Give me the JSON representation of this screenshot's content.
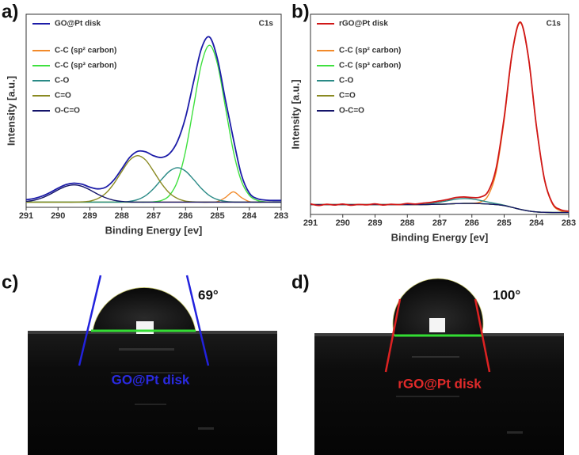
{
  "chart_data": [
    {
      "type": "line",
      "panel_label": "a)",
      "annotation": "C1s",
      "x_label": "Binding Energy [ev]",
      "y_label": "Intensity [a.u.]",
      "legend": "upper left",
      "x": [
        291,
        290.75,
        290.5,
        290.25,
        290,
        289.75,
        289.5,
        289.25,
        289,
        288.75,
        288.5,
        288.25,
        288,
        287.75,
        287.5,
        287.25,
        287,
        286.75,
        286.5,
        286.25,
        286,
        285.75,
        285.5,
        285.25,
        285,
        284.75,
        284.5,
        284.25,
        284,
        283.75,
        283.5,
        283.25,
        283
      ],
      "xlim": [
        291,
        283
      ],
      "xticks": [
        291,
        290,
        289,
        288,
        287,
        286,
        285,
        284,
        283
      ],
      "ylim": [
        0,
        112
      ],
      "series": [
        {
          "name": "GO@Pt disk",
          "color": "#1c1ca8",
          "values": [
            4.4,
            5.1,
            6.5,
            8.6,
            11.1,
            13.2,
            14.0,
            13.4,
            11.7,
            10.7,
            11.7,
            15.8,
            22.3,
            29.0,
            32.5,
            32.2,
            29.9,
            28.9,
            31.2,
            38.4,
            52.2,
            72.6,
            92.2,
            98.8,
            86.1,
            62.4,
            39.7,
            19.0,
            8.3,
            5.0,
            4.2,
            4.0,
            4.0
          ]
        },
        {
          "name": "C-C (sp² carbon)",
          "color": "#f28a2a",
          "values": [
            3,
            3,
            3,
            3,
            3,
            3,
            3,
            3,
            3,
            3,
            3,
            3,
            3,
            3,
            3,
            3,
            3,
            3,
            3,
            3,
            3,
            3,
            3,
            3,
            3.3,
            5.7,
            9,
            5.7,
            3.3,
            3,
            3,
            3,
            3
          ]
        },
        {
          "name": "C-C (sp³ carbon)",
          "color": "#3fe03f",
          "values": [
            3,
            3,
            3,
            3,
            3,
            3,
            3,
            3,
            3,
            3,
            3,
            3,
            3,
            3,
            3,
            3,
            3.2,
            4.0,
            7.0,
            15.3,
            32.6,
            58.2,
            83.3,
            94,
            83.3,
            58.2,
            32.6,
            15.3,
            7.0,
            4.0,
            3.2,
            3,
            3
          ]
        },
        {
          "name": "C-O",
          "color": "#2a8a86",
          "values": [
            3,
            3,
            3,
            3,
            3,
            3,
            3,
            3,
            3,
            3,
            3,
            3,
            3.1,
            3.5,
            4.5,
            6.8,
            10.9,
            16.2,
            21,
            23,
            21,
            16.2,
            10.9,
            6.8,
            4.5,
            3.5,
            3.1,
            3,
            3,
            3,
            3,
            3,
            3
          ]
        },
        {
          "name": "C=O",
          "color": "#8a8a22",
          "values": [
            3,
            3,
            3,
            3,
            3,
            3,
            3,
            3.2,
            3.6,
            5.1,
            8.2,
            13.7,
            20.8,
            27.4,
            30,
            27.4,
            20.8,
            13.7,
            8.2,
            5.1,
            3.6,
            3.2,
            3,
            3,
            3,
            3,
            3,
            3,
            3,
            3,
            3,
            3,
            3
          ]
        },
        {
          "name": "O-C=O",
          "color": "#14146a",
          "values": [
            3.4,
            4.1,
            5.5,
            7.6,
            10.1,
            12.2,
            13,
            12.2,
            10.1,
            7.6,
            5.5,
            4.1,
            3.4,
            3.1,
            3,
            3,
            3,
            3,
            3,
            3,
            3,
            3,
            3,
            3,
            3,
            3,
            3,
            3,
            3,
            3,
            3,
            3,
            3
          ]
        }
      ]
    },
    {
      "type": "line",
      "panel_label": "b)",
      "annotation": "C1s",
      "x_label": "Binding Energy [ev]",
      "y_label": "Intensity [a.u.]",
      "legend": "upper left",
      "x": [
        291,
        290.75,
        290.5,
        290.25,
        290,
        289.75,
        289.5,
        289.25,
        289,
        288.75,
        288.5,
        288.25,
        288,
        287.75,
        287.5,
        287.25,
        287,
        286.75,
        286.5,
        286.25,
        286,
        285.75,
        285.5,
        285.25,
        285,
        284.75,
        284.5,
        284.25,
        284,
        283.75,
        283.5,
        283.25,
        283
      ],
      "xlim": [
        291,
        283
      ],
      "xticks": [
        291,
        290,
        289,
        288,
        287,
        286,
        285,
        284,
        283
      ],
      "ylim": [
        0,
        102
      ],
      "series": [
        {
          "name": "rGO@Pt disk",
          "color": "#d01818",
          "values": [
            5.4,
            4.6,
            5.2,
            4.8,
            5.3,
            4.7,
            5.1,
            4.9,
            5.4,
            4.8,
            5.2,
            5.0,
            5.6,
            5.3,
            5.8,
            6.2,
            6.9,
            7.6,
            8.6,
            8.9,
            8.6,
            8.8,
            11.6,
            23.4,
            49.3,
            82.5,
            98.0,
            80.4,
            45.0,
            17.8,
            5.6,
            2.4,
            1.6
          ]
        },
        {
          "name": "C-C (sp² carbon)",
          "color": "#f28a2a",
          "values": [
            5,
            5,
            5,
            5,
            5,
            5,
            5,
            5,
            5,
            5,
            5,
            5,
            5,
            5,
            5,
            5.1,
            5.2,
            5.3,
            5.5,
            5.6,
            5.7,
            6.3,
            9.5,
            21.4,
            48.0,
            81.8,
            97.6,
            80.0,
            44.8,
            17.5,
            5.2,
            1.8,
            1.0
          ]
        },
        {
          "name": "C-C (sp³ carbon)",
          "color": "#3fe03f",
          "values": [
            5,
            5,
            5,
            5,
            5,
            5,
            5,
            5,
            5,
            5,
            5,
            5,
            5,
            5,
            5,
            5.1,
            5.2,
            5.3,
            5.5,
            5.6,
            5.6,
            5.5,
            5.3,
            5.0,
            4.5,
            3.6,
            2.6,
            1.8,
            1.3,
            1.1,
            1.0,
            1.0,
            1.0
          ]
        },
        {
          "name": "C-O",
          "color": "#2a8a86",
          "values": [
            5,
            5,
            5,
            5,
            5,
            5,
            5,
            5,
            5,
            5,
            5,
            5,
            5,
            5.1,
            5.2,
            5.6,
            6.2,
            7.0,
            7.8,
            8.1,
            7.9,
            7.2,
            6.3,
            5.5,
            4.7,
            3.6,
            2.6,
            1.8,
            1.3,
            1.1,
            1.0,
            1.0,
            1.0
          ]
        },
        {
          "name": "C=O",
          "color": "#8a8a22",
          "values": [
            5,
            5,
            5,
            5,
            5,
            5,
            5,
            5,
            5,
            5,
            5,
            5,
            5,
            5,
            5,
            5.1,
            5.2,
            5.3,
            5.5,
            5.6,
            5.6,
            5.5,
            5.3,
            5.0,
            4.5,
            3.6,
            2.6,
            1.8,
            1.3,
            1.1,
            1.0,
            1.0,
            1.0
          ]
        },
        {
          "name": "O-C=O",
          "color": "#14146a",
          "values": [
            5,
            5,
            5,
            5,
            5,
            5,
            5,
            5,
            5,
            5,
            5,
            5,
            5,
            5,
            5,
            5.1,
            5.2,
            5.3,
            5.5,
            5.6,
            5.6,
            5.5,
            5.3,
            5.0,
            4.5,
            3.6,
            2.6,
            1.8,
            1.3,
            1.1,
            1.0,
            1.0,
            1.0
          ]
        }
      ]
    }
  ],
  "photos": [
    {
      "label": "c)",
      "angle": "69°",
      "caption": "GO@Pt disk"
    },
    {
      "label": "d)",
      "angle": "100°",
      "caption": "rGO@Pt disk"
    }
  ]
}
